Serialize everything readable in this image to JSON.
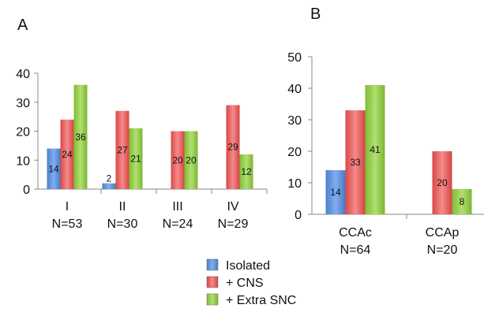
{
  "legend": {
    "placement": "bottom-center",
    "entries": [
      {
        "name": "Isolated",
        "color": "#5b8fd8"
      },
      {
        "name": "+ CNS",
        "color": "#e05a5a"
      },
      {
        "name": "+ Extra SNC",
        "color": "#8ec53e"
      }
    ]
  },
  "chart_data": [
    {
      "panel_label": "A",
      "type": "bar",
      "categories": [
        [
          "I",
          "N=53"
        ],
        [
          "II",
          "N=30"
        ],
        [
          "III",
          "N=24"
        ],
        [
          "IV",
          "N=29"
        ]
      ],
      "series": [
        {
          "name": "Isolated",
          "values": [
            14,
            2,
            null,
            null
          ]
        },
        {
          "name": "+ CNS",
          "values": [
            24,
            27,
            20,
            29
          ]
        },
        {
          "name": "+ Extra SNC",
          "values": [
            36,
            21,
            20,
            12
          ]
        }
      ],
      "data_labels": [
        [
          "14",
          "2",
          "",
          ""
        ],
        [
          "24",
          "27",
          "20",
          "29"
        ],
        [
          "36",
          "21",
          "20",
          "12"
        ]
      ],
      "ylim": [
        0,
        40
      ],
      "yticks": [
        0,
        10,
        20,
        30,
        40
      ],
      "grid": false
    },
    {
      "panel_label": "B",
      "type": "bar",
      "categories": [
        [
          "CCAc",
          "N=64"
        ],
        [
          "CCAp",
          "N=20"
        ]
      ],
      "series": [
        {
          "name": "Isolated",
          "values": [
            14,
            null
          ]
        },
        {
          "name": "+ CNS",
          "values": [
            33,
            20
          ]
        },
        {
          "name": "+ Extra SNC",
          "values": [
            41,
            8
          ]
        }
      ],
      "data_labels": [
        [
          "14",
          ""
        ],
        [
          "33",
          "20"
        ],
        [
          "41",
          "8"
        ]
      ],
      "ylim": [
        0,
        50
      ],
      "yticks": [
        0,
        10,
        20,
        30,
        40,
        50
      ],
      "grid": false
    }
  ]
}
